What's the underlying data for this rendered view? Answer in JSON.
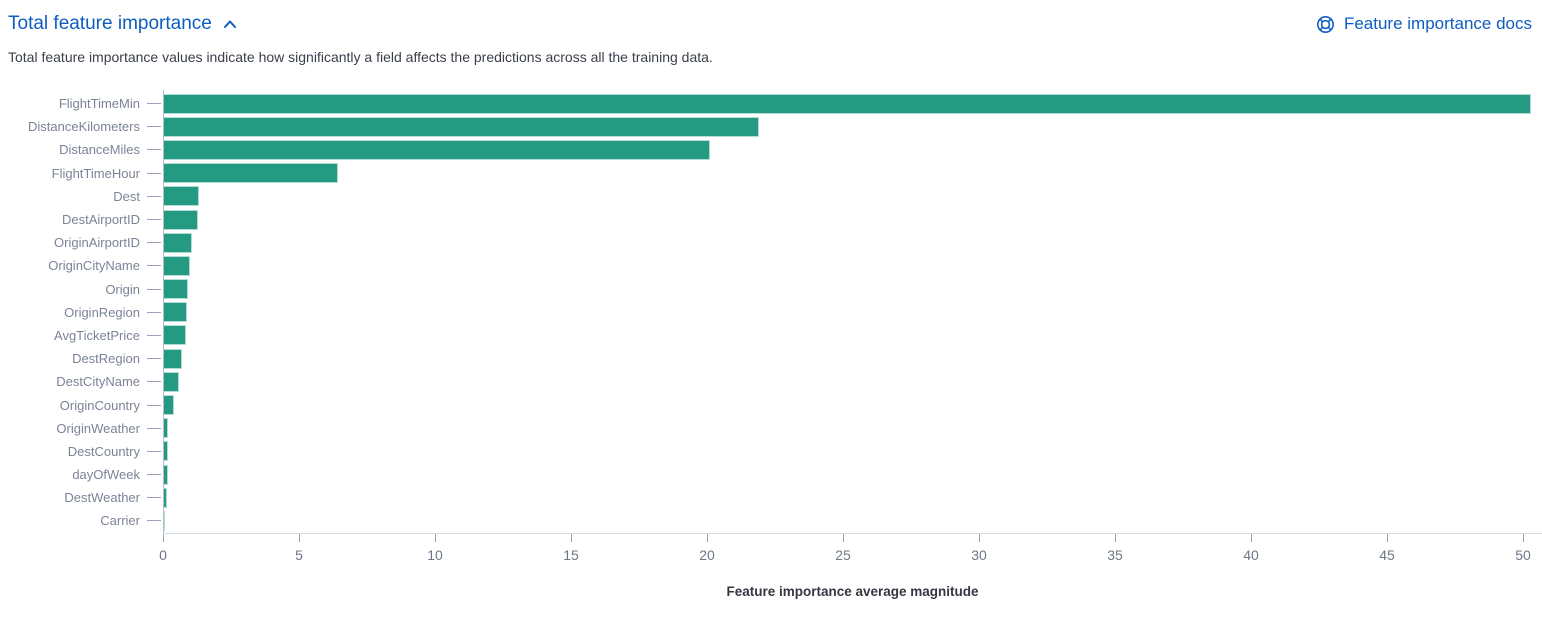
{
  "header": {
    "title": "Total feature importance",
    "docs_link_label": "Feature importance docs",
    "icons": {
      "collapse": "chevron-up-icon",
      "docs": "lifebuoy-help-icon"
    }
  },
  "description": "Total feature importance values indicate how significantly a field affects the predictions across all the training data.",
  "colors": {
    "link": "#0d5ec2",
    "bar": "#249a83",
    "bar_border": "rgba(255,255,255,0.65)",
    "y_label": "#7b8496",
    "x_label": "#6e7787",
    "axis_line": "#b6bdc9",
    "baseline": "#d5dae2",
    "axis_title": "#33373f",
    "description_text": "#3a3f4c"
  },
  "chart_data": {
    "type": "bar",
    "orientation": "horizontal",
    "title": "Total feature importance",
    "xlabel": "Feature importance average magnitude",
    "ylabel": "",
    "xlim": [
      0,
      50.7
    ],
    "xticks": [
      0,
      5,
      10,
      15,
      20,
      25,
      30,
      35,
      40,
      45,
      50
    ],
    "grid": false,
    "legend": false,
    "categories": [
      "FlightTimeMin",
      "DistanceKilometers",
      "DistanceMiles",
      "FlightTimeHour",
      "Dest",
      "DestAirportID",
      "OriginAirportID",
      "OriginCityName",
      "Origin",
      "OriginRegion",
      "AvgTicketPrice",
      "DestRegion",
      "DestCityName",
      "OriginCountry",
      "OriginWeather",
      "DestCountry",
      "dayOfWeek",
      "DestWeather",
      "Carrier"
    ],
    "values": [
      50.3,
      21.9,
      20.1,
      6.45,
      1.33,
      1.3,
      1.08,
      0.98,
      0.93,
      0.87,
      0.83,
      0.71,
      0.6,
      0.4,
      0.19,
      0.18,
      0.18,
      0.15,
      0.05
    ]
  }
}
